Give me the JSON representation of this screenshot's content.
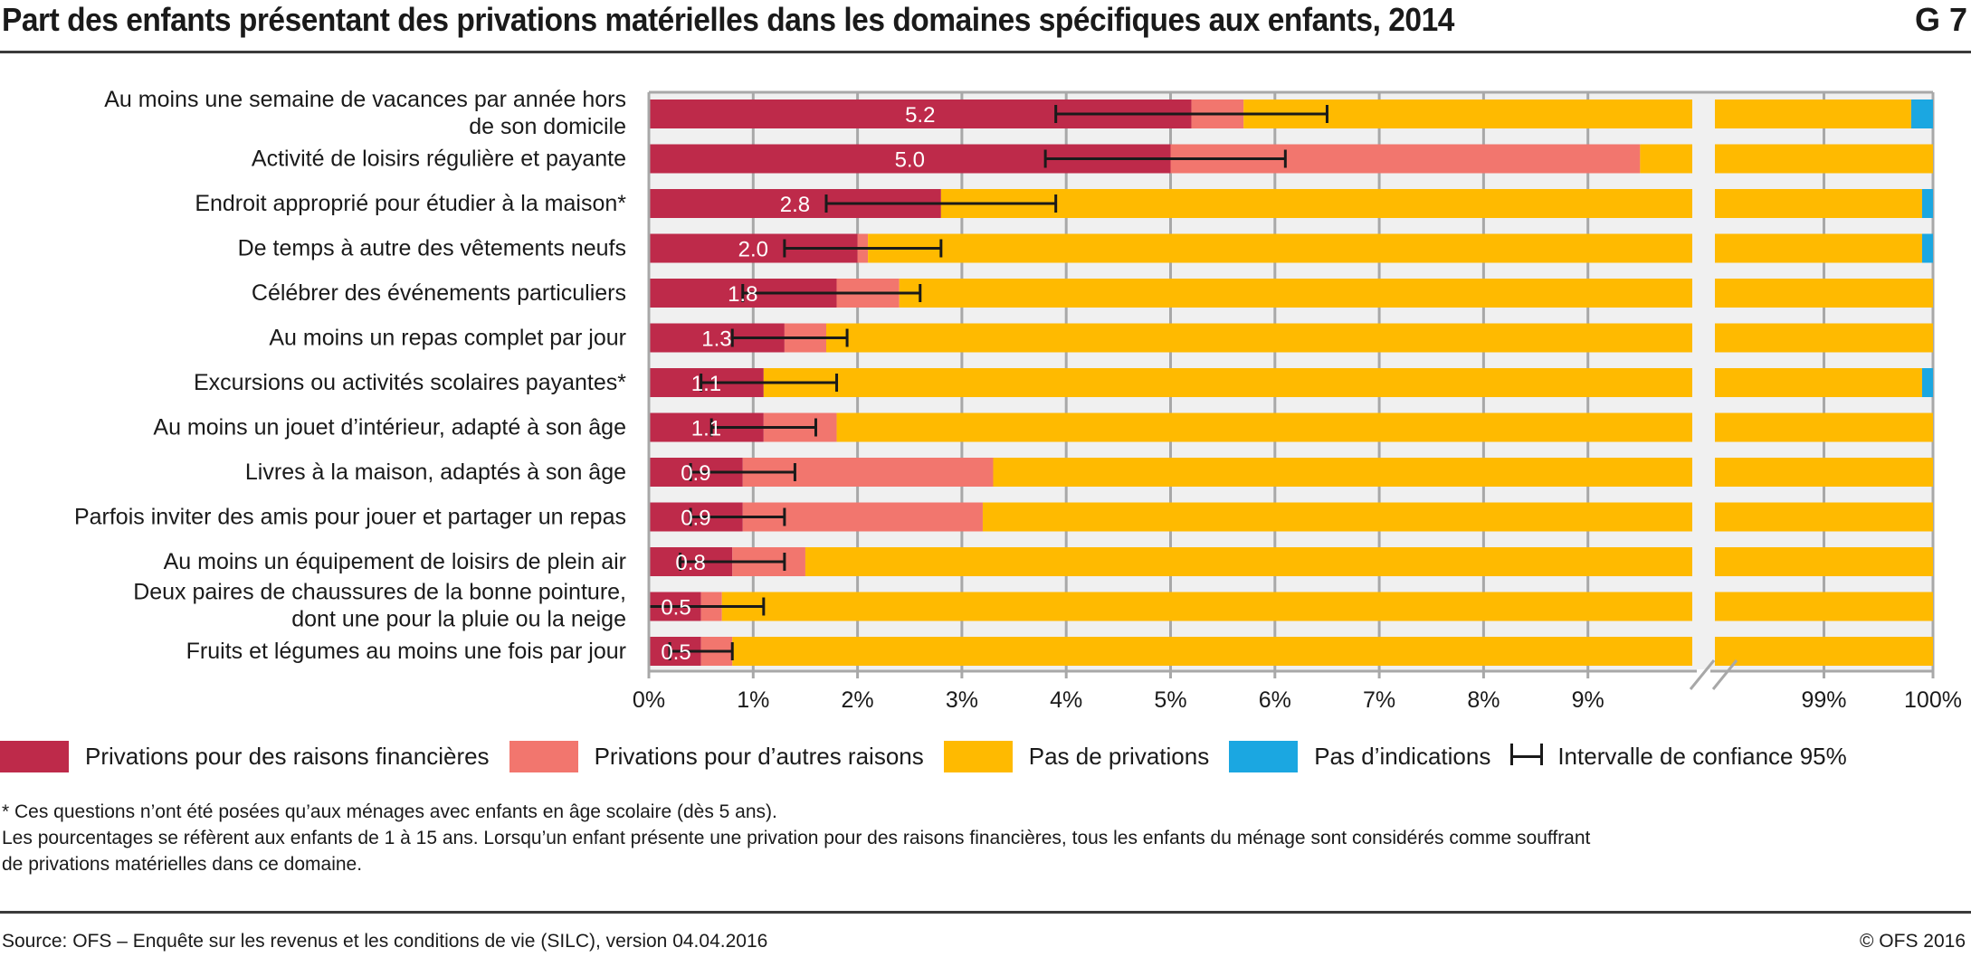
{
  "header": {
    "title": "Part des enfants présentant des privations matérielles dans les domaines spécifiques aux enfants, 2014",
    "graphic_number": "G 7"
  },
  "colors": {
    "financial": "#BE2A4A",
    "other": "#F2766E",
    "none": "#FFBA00",
    "no_indication": "#1BA7E1",
    "ci": "#1a1a1a",
    "plot_bg": "#F0F0F0",
    "grid": "#A8A8A8"
  },
  "chart_data": {
    "type": "bar",
    "orientation": "horizontal",
    "stacked": true,
    "title": "Part des enfants présentant des privations matérielles dans les domaines spécifiques aux enfants, 2014",
    "xlabel": "",
    "ylabel": "",
    "axis_break": {
      "from": 10,
      "to": 98
    },
    "xlim": [
      0,
      100
    ],
    "x_ticks": [
      "0%",
      "1%",
      "2%",
      "3%",
      "4%",
      "5%",
      "6%",
      "7%",
      "8%",
      "9%",
      "99%",
      "100%"
    ],
    "x_tick_values": [
      0,
      1,
      2,
      3,
      4,
      5,
      6,
      7,
      8,
      9,
      99,
      100
    ],
    "grid": true,
    "legend_position": "bottom",
    "categories": [
      [
        "Au moins une semaine de vacances par année hors",
        "de son domicile"
      ],
      [
        "Activité de loisirs régulière et payante"
      ],
      [
        "Endroit approprié pour étudier à la maison*"
      ],
      [
        "De temps à autre des vêtements neufs"
      ],
      [
        "Célébrer des événements particuliers"
      ],
      [
        "Au moins un repas complet par jour"
      ],
      [
        "Excursions ou activités scolaires payantes*"
      ],
      [
        "Au moins un jouet d’intérieur, adapté à son âge"
      ],
      [
        "Livres à la maison, adaptés à son âge"
      ],
      [
        "Parfois inviter des amis pour jouer et partager un repas"
      ],
      [
        "Au moins un équipement de loisirs de plein air"
      ],
      [
        "Deux paires de chaussures de la bonne pointure,",
        "dont une pour la pluie ou la neige"
      ],
      [
        "Fruits et légumes au moins une fois par jour"
      ]
    ],
    "series": [
      {
        "name": "Privations pour des raisons financières",
        "key": "financial",
        "values": [
          5.2,
          5.0,
          2.8,
          2.0,
          1.8,
          1.3,
          1.1,
          1.1,
          0.9,
          0.9,
          0.8,
          0.5,
          0.5
        ]
      },
      {
        "name": "Privations pour d’autres raisons",
        "key": "other",
        "values": [
          0.5,
          4.5,
          0.0,
          0.1,
          0.6,
          0.4,
          0.0,
          0.7,
          2.4,
          2.3,
          0.7,
          0.2,
          0.3
        ]
      },
      {
        "name": "Pas de privations",
        "key": "none",
        "values": [
          94.1,
          94.2,
          97.1,
          97.8,
          97.6,
          98.3,
          98.8,
          98.2,
          96.7,
          96.8,
          98.5,
          99.3,
          99.2
        ]
      },
      {
        "name": "Pas d’indications",
        "key": "no_indication",
        "values": [
          0.2,
          0.3,
          0.1,
          0.1,
          0.0,
          0.0,
          0.1,
          0.0,
          0.0,
          0.0,
          0.0,
          0.0,
          0.0
        ]
      }
    ],
    "data_labels": [
      "5.2",
      "5.0",
      "2.8",
      "2.0",
      "1.8",
      "1.3",
      "1.1",
      "1.1",
      "0.9",
      "0.9",
      "0.8",
      "0.5",
      "0.5"
    ],
    "confidence_interval_95": [
      [
        3.9,
        6.5
      ],
      [
        3.8,
        6.1
      ],
      [
        1.7,
        3.9
      ],
      [
        1.3,
        2.8
      ],
      [
        0.9,
        2.6
      ],
      [
        0.8,
        1.9
      ],
      [
        0.5,
        1.8
      ],
      [
        0.6,
        1.6
      ],
      [
        0.4,
        1.4
      ],
      [
        0.4,
        1.3
      ],
      [
        0.3,
        1.3
      ],
      [
        0.0,
        1.1
      ],
      [
        0.2,
        0.8
      ]
    ]
  },
  "legend": {
    "items": [
      {
        "label": "Privations pour des raisons financières",
        "color": "#BE2A4A"
      },
      {
        "label": "Privations pour d’autres raisons",
        "color": "#F2766E"
      },
      {
        "label": "Pas de privations",
        "color": "#FFBA00"
      },
      {
        "label": "Pas d’indications",
        "color": "#1BA7E1"
      }
    ],
    "ci_label": "Intervalle de confiance 95%"
  },
  "notes": {
    "line1": "* Ces questions n’ont été posées qu’aux ménages avec enfants en âge scolaire (dès 5 ans).",
    "line2": "Les pourcentages se réfèrent aux enfants de 1 à 15 ans. Lorsqu’un enfant présente une privation pour des raisons financières, tous les enfants du ménage sont considérés comme souffrant",
    "line3": "de privations matérielles dans ce domaine."
  },
  "footer": {
    "source": "Source: OFS – Enquête sur les revenus et les conditions de vie (SILC), version 04.04.2016",
    "copyright": "© OFS 2016"
  }
}
